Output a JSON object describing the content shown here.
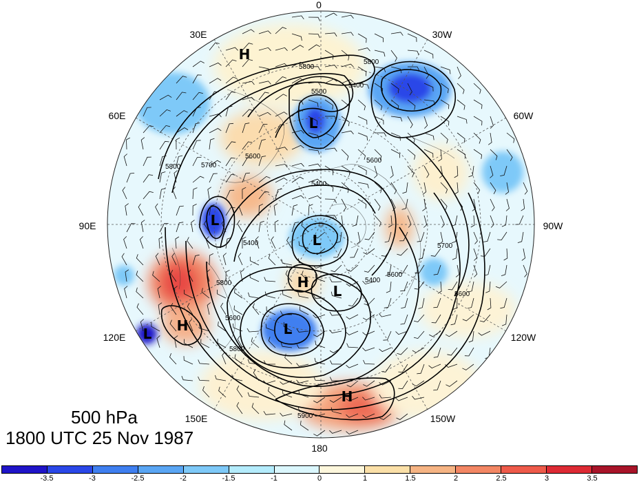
{
  "caption": {
    "level": "500 hPa",
    "time": "1800 UTC 25 Nov 1987"
  },
  "longitude_labels": [
    "0",
    "30W",
    "60W",
    "90W",
    "120W",
    "150W",
    "180",
    "150E",
    "120E",
    "90E",
    "60E",
    "30E"
  ],
  "contour_labels": [
    "5800",
    "5800",
    "5500",
    "5400",
    "5600",
    "5700",
    "5800",
    "5400",
    "5600",
    "5600",
    "5400",
    "5700",
    "5600",
    "5800",
    "5900",
    "5800",
    "5400",
    "5600"
  ],
  "pressure_centers": [
    {
      "type": "H"
    },
    {
      "type": "L"
    },
    {
      "type": "L"
    },
    {
      "type": "L"
    },
    {
      "type": "H"
    },
    {
      "type": "L"
    },
    {
      "type": "L"
    },
    {
      "type": "H"
    },
    {
      "type": "L"
    },
    {
      "type": "H"
    }
  ],
  "colorbar": {
    "colors": [
      "#1f14c8",
      "#2a47e8",
      "#3f7ff0",
      "#5aa6f4",
      "#7ec9f8",
      "#b4ecfc",
      "#dbf7fd",
      "#fdf7dc",
      "#fbe0a8",
      "#f6b484",
      "#f38764",
      "#ee5a4a",
      "#dd2a34",
      "#a81429"
    ],
    "tick_labels": [
      "-3.5",
      "-3",
      "-2.5",
      "-2",
      "-1.5",
      "-1",
      "0",
      "1",
      "1.5",
      "2",
      "2.5",
      "3",
      "3.5"
    ]
  }
}
